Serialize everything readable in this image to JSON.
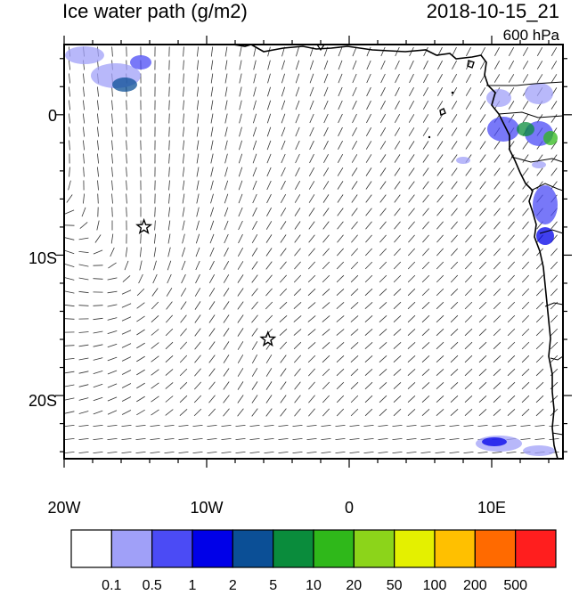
{
  "header": {
    "title": "Ice water path (g/m2)",
    "datetime": "2018-10-15_21",
    "level": "600 hPa"
  },
  "map": {
    "lon_range": [
      -20,
      15
    ],
    "lat_range": [
      -24.5,
      5
    ],
    "lat_tick_labels": [
      {
        "lat": 0,
        "text": "0"
      },
      {
        "lat": -10,
        "text": "10S"
      },
      {
        "lat": -20,
        "text": "20S"
      }
    ],
    "lon_tick_labels": [
      {
        "lon": -20,
        "text": "20W"
      },
      {
        "lon": -10,
        "text": "10W"
      },
      {
        "lon": 0,
        "text": "0"
      },
      {
        "lon": 10,
        "text": "10E"
      }
    ],
    "markers": [
      {
        "type": "star",
        "lon": -14.4,
        "lat": -8.0
      },
      {
        "type": "star",
        "lon": -5.7,
        "lat": -16.0
      }
    ]
  },
  "colorbar": {
    "colors": [
      "#ffffff",
      "#a0a0f8",
      "#4b4bf5",
      "#0000e8",
      "#0b4f96",
      "#0a8c3c",
      "#2fb81a",
      "#8cd41a",
      "#e4f000",
      "#ffc000",
      "#ff6a00",
      "#ff1e1e"
    ],
    "labels": [
      "0.1",
      "0.5",
      "1",
      "2",
      "5",
      "10",
      "20",
      "50",
      "100",
      "200",
      "500"
    ]
  }
}
